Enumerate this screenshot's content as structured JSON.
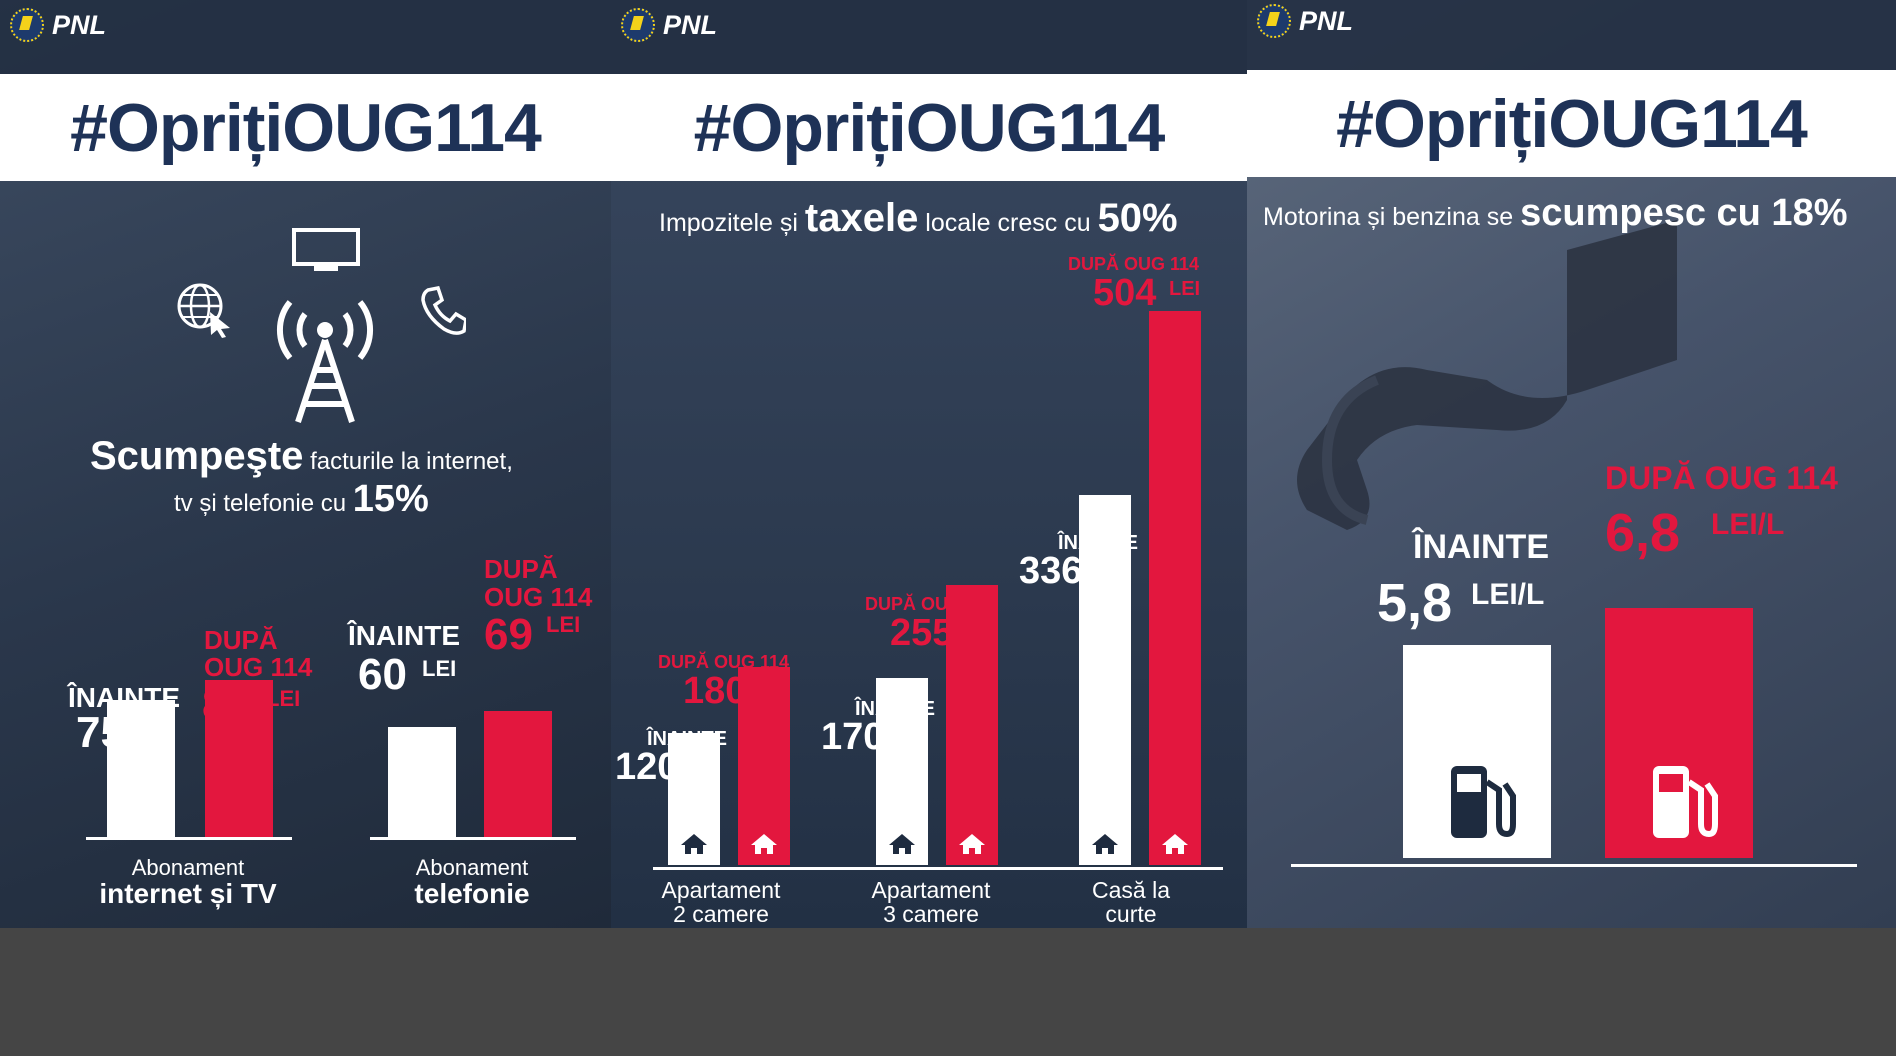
{
  "brand": {
    "party": "PNL",
    "hashtag": "#OprițiOUG114"
  },
  "colors": {
    "before": "#ffffff",
    "after": "#e3173e",
    "banner_text": "#1e3257"
  },
  "panels": [
    {
      "headline_bold": "Scumpeşte",
      "headline_rest1": " facturile la internet,",
      "headline_rest2": "tv și telefonie cu ",
      "headline_pct": "15%",
      "before_label": "ÎNAINTE",
      "after_label1": "DUPĂ",
      "after_label2": "OUG 114",
      "unit": "LEI",
      "categories": [
        {
          "line1": "Abonament",
          "line2": "internet și TV"
        },
        {
          "line1": "Abonament",
          "line2": "telefonie"
        }
      ]
    },
    {
      "headline_a": "Impozitele și ",
      "headline_b": "taxele",
      "headline_c": " locale cresc cu ",
      "headline_pct": "50%",
      "before_label": "ÎNAINTE",
      "after_label": "DUPĂ OUG 114",
      "unit": "LEI",
      "categories": [
        {
          "line1": "Apartament",
          "line2": "2 camere"
        },
        {
          "line1": "Apartament",
          "line2": "3 camere"
        },
        {
          "line1": "Casă la",
          "line2": "curte"
        }
      ]
    },
    {
      "headline_a": "Motorina și benzina se ",
      "headline_b": "scumpesc cu 18%",
      "before_label": "ÎNAINTE",
      "after_label": "DUPĂ OUG 114",
      "unit": "LEI/L"
    }
  ],
  "chart_data": [
    {
      "type": "bar",
      "categories": [
        "Abonament internet și TV",
        "Abonament telefonie"
      ],
      "series": [
        {
          "name": "ÎNAINTE",
          "values": [
            75,
            60
          ]
        },
        {
          "name": "DUPĂ OUG 114",
          "values": [
            86,
            69
          ]
        }
      ],
      "value_labels": {
        "before": [
          "75",
          "60"
        ],
        "after": [
          "86",
          "69"
        ]
      }
    },
    {
      "type": "bar",
      "categories": [
        "Apartament 2 camere",
        "Apartament 3 camere",
        "Casă la curte"
      ],
      "series": [
        {
          "name": "ÎNAINTE",
          "values": [
            120,
            170,
            336
          ]
        },
        {
          "name": "DUPĂ OUG 114",
          "values": [
            180,
            255,
            504
          ]
        }
      ],
      "value_labels": {
        "before": [
          "120",
          "170",
          "336"
        ],
        "after": [
          "180",
          "255",
          "504"
        ]
      }
    },
    {
      "type": "bar",
      "categories": [
        "Motorina și benzina"
      ],
      "series": [
        {
          "name": "ÎNAINTE",
          "values": [
            5.8
          ]
        },
        {
          "name": "DUPĂ OUG 114",
          "values": [
            6.8
          ]
        }
      ],
      "value_labels": {
        "before": [
          "5,8"
        ],
        "after": [
          "6,8"
        ]
      }
    }
  ]
}
